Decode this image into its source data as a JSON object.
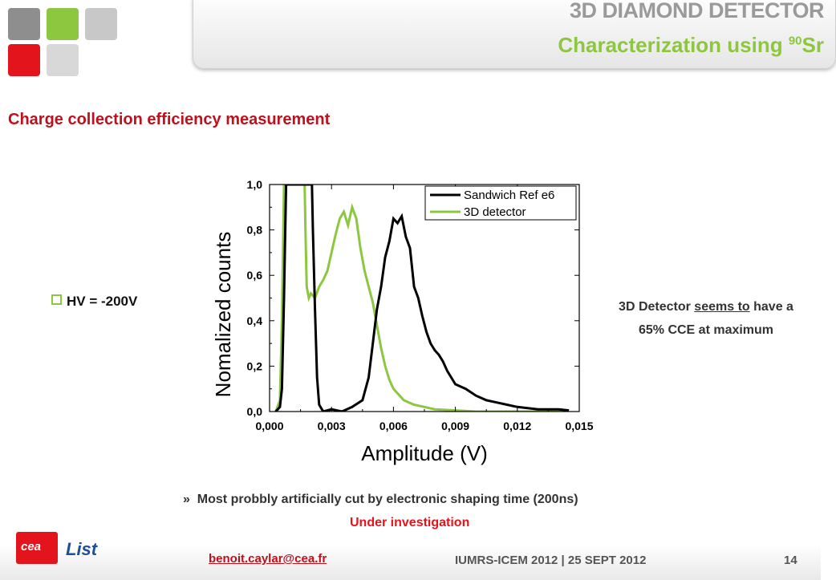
{
  "header": {
    "title": "3D DIAMOND DETECTOR",
    "subtitle_main": "Characterization using ",
    "subtitle_sup": "90",
    "subtitle_end": "Sr"
  },
  "section_title": "Charge collection efficiency measurement",
  "bullet": "HV = -200V",
  "note": {
    "part1": "3D Detector ",
    "underlined": "seems to",
    "part2": " have a",
    "line2": "65% CCE at maximum"
  },
  "sub_bullet": {
    "marker": "»",
    "text": "Most probbly artificially cut by electronic shaping time (200ns)",
    "highlight": "Under investigation"
  },
  "footer": {
    "logo_text": "cea",
    "list_logo": "List",
    "email": "benoit.caylar@cea.fr",
    "conference": "IUMRS-ICEM 2012 | 25 SEPT 2012",
    "page": "14"
  },
  "colors": {
    "accent_red": "#c0101c",
    "accent_green": "#8dc63f",
    "logo_squares": [
      "#8e8e8e",
      "#8dc63f",
      "#c8c8c8",
      "#e3141c",
      "#d8d8d8"
    ]
  },
  "chart_data": {
    "type": "line",
    "xlabel": "Amplitude (V)",
    "ylabel": "Nomalized counts",
    "xlim": [
      0,
      0.015
    ],
    "ylim": [
      0,
      1.0
    ],
    "xticks": [
      "0,000",
      "0,003",
      "0,006",
      "0,009",
      "0,012",
      "0,015"
    ],
    "yticks": [
      "0,0",
      "0,2",
      "0,4",
      "0,6",
      "0,8",
      "1,0"
    ],
    "legend_position": "top-right",
    "series": [
      {
        "name": "Sandwich Ref e6",
        "color": "#000000",
        "x": [
          0.0003,
          0.0005,
          0.0006,
          0.0007,
          0.0008,
          0.0009,
          0.001,
          0.002,
          0.00205,
          0.0021,
          0.0022,
          0.0023,
          0.0024,
          0.0026,
          0.003,
          0.0035,
          0.004,
          0.0045,
          0.0048,
          0.005,
          0.0052,
          0.0054,
          0.0056,
          0.0058,
          0.006,
          0.0062,
          0.0064,
          0.0066,
          0.0068,
          0.007,
          0.0072,
          0.0074,
          0.0076,
          0.0078,
          0.008,
          0.0082,
          0.0084,
          0.0086,
          0.0088,
          0.009,
          0.0095,
          0.01,
          0.0105,
          0.011,
          0.0115,
          0.012,
          0.0125,
          0.013,
          0.0135,
          0.014,
          0.0145
        ],
        "y": [
          0.0,
          0.02,
          0.1,
          0.5,
          1.0,
          1.0,
          1.0,
          1.0,
          1.0,
          0.8,
          0.45,
          0.15,
          0.03,
          0.0,
          0.01,
          0.0,
          0.02,
          0.05,
          0.15,
          0.3,
          0.45,
          0.55,
          0.68,
          0.75,
          0.85,
          0.83,
          0.86,
          0.77,
          0.72,
          0.55,
          0.5,
          0.42,
          0.35,
          0.3,
          0.27,
          0.25,
          0.22,
          0.18,
          0.15,
          0.12,
          0.1,
          0.07,
          0.05,
          0.04,
          0.03,
          0.02,
          0.015,
          0.01,
          0.01,
          0.01,
          0.005
        ]
      },
      {
        "name": "3D detector",
        "color": "#8dc63f",
        "x": [
          0.0003,
          0.0005,
          0.0006,
          0.0007,
          0.0008,
          0.0009,
          0.0011,
          0.0013,
          0.0015,
          0.0016,
          0.0017,
          0.00175,
          0.0018,
          0.0019,
          0.002,
          0.0022,
          0.0024,
          0.0026,
          0.0028,
          0.003,
          0.0032,
          0.0034,
          0.0036,
          0.0038,
          0.004,
          0.0042,
          0.0044,
          0.0046,
          0.0048,
          0.005,
          0.0052,
          0.0054,
          0.0056,
          0.0058,
          0.006,
          0.0065,
          0.007,
          0.0075,
          0.008,
          0.009,
          0.01,
          0.011,
          0.012,
          0.013,
          0.0145
        ],
        "y": [
          0.0,
          0.05,
          0.4,
          1.0,
          1.0,
          1.0,
          1.0,
          1.0,
          1.0,
          1.0,
          1.0,
          0.75,
          0.55,
          0.5,
          0.52,
          0.5,
          0.55,
          0.58,
          0.62,
          0.7,
          0.78,
          0.85,
          0.88,
          0.82,
          0.9,
          0.85,
          0.72,
          0.62,
          0.55,
          0.48,
          0.38,
          0.28,
          0.2,
          0.14,
          0.1,
          0.05,
          0.03,
          0.02,
          0.01,
          0.005,
          0.0,
          0.0,
          0.0,
          0.0,
          0.0
        ]
      }
    ]
  }
}
